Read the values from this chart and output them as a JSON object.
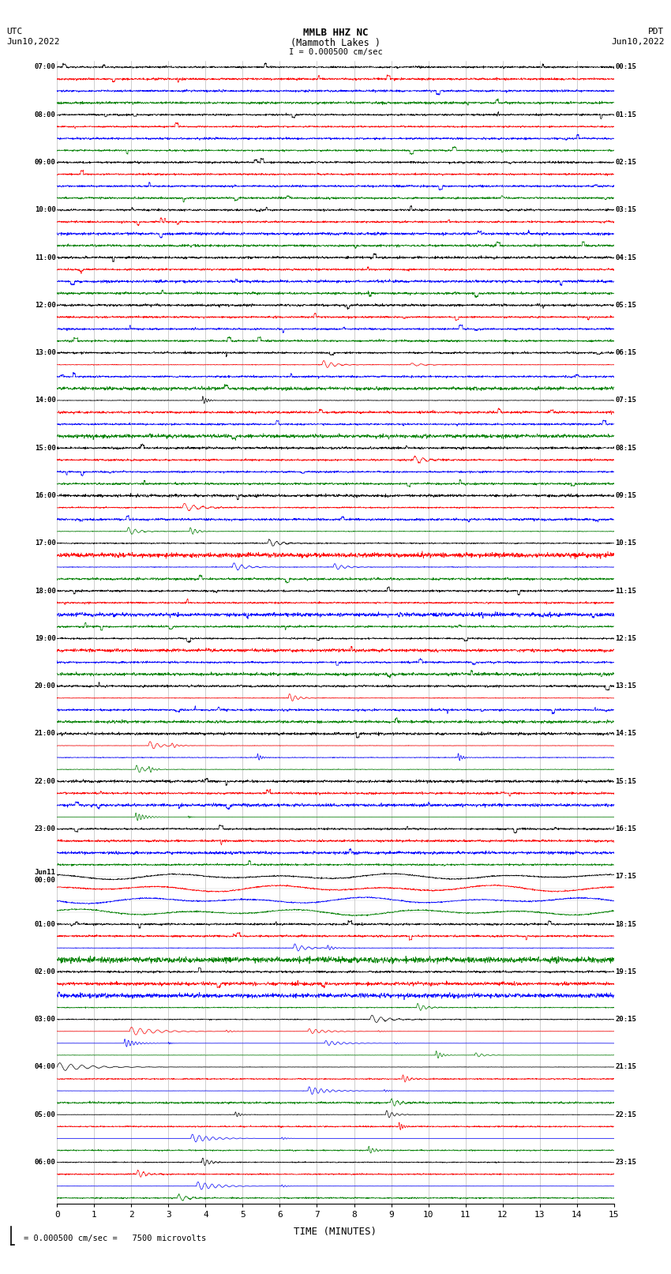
{
  "title_line1": "MMLB HHZ NC",
  "title_line2": "(Mammoth Lakes )",
  "title_line3": "I = 0.000500 cm/sec",
  "left_header_line1": "UTC",
  "left_header_line2": "Jun10,2022",
  "right_header_line1": "PDT",
  "right_header_line2": "Jun10,2022",
  "xlabel": "TIME (MINUTES)",
  "bottom_note": "= 0.000500 cm/sec =   7500 microvolts",
  "x_min": 0,
  "x_max": 15,
  "x_ticks": [
    0,
    1,
    2,
    3,
    4,
    5,
    6,
    7,
    8,
    9,
    10,
    11,
    12,
    13,
    14,
    15
  ],
  "background_color": "#ffffff",
  "trace_colors": [
    "black",
    "red",
    "blue",
    "green"
  ],
  "utc_labels": [
    "07:00",
    "",
    "",
    "",
    "08:00",
    "",
    "",
    "",
    "09:00",
    "",
    "",
    "",
    "10:00",
    "",
    "",
    "",
    "11:00",
    "",
    "",
    "",
    "12:00",
    "",
    "",
    "",
    "13:00",
    "",
    "",
    "",
    "14:00",
    "",
    "",
    "",
    "15:00",
    "",
    "",
    "",
    "16:00",
    "",
    "",
    "",
    "17:00",
    "",
    "",
    "",
    "18:00",
    "",
    "",
    "",
    "19:00",
    "",
    "",
    "",
    "20:00",
    "",
    "",
    "",
    "21:00",
    "",
    "",
    "",
    "22:00",
    "",
    "",
    "",
    "23:00",
    "",
    "",
    "",
    "Jun11\n00:00",
    "",
    "",
    "",
    "01:00",
    "",
    "",
    "",
    "02:00",
    "",
    "",
    "",
    "03:00",
    "",
    "",
    "",
    "04:00",
    "",
    "",
    "",
    "05:00",
    "",
    "",
    "",
    "06:00",
    "",
    "",
    ""
  ],
  "pdt_labels": [
    "00:15",
    "",
    "",
    "",
    "01:15",
    "",
    "",
    "",
    "02:15",
    "",
    "",
    "",
    "03:15",
    "",
    "",
    "",
    "04:15",
    "",
    "",
    "",
    "05:15",
    "",
    "",
    "",
    "06:15",
    "",
    "",
    "",
    "07:15",
    "",
    "",
    "",
    "08:15",
    "",
    "",
    "",
    "09:15",
    "",
    "",
    "",
    "10:15",
    "",
    "",
    "",
    "11:15",
    "",
    "",
    "",
    "12:15",
    "",
    "",
    "",
    "13:15",
    "",
    "",
    "",
    "14:15",
    "",
    "",
    "",
    "15:15",
    "",
    "",
    "",
    "16:15",
    "",
    "",
    "",
    "17:15",
    "",
    "",
    "",
    "18:15",
    "",
    "",
    "",
    "19:15",
    "",
    "",
    "",
    "20:15",
    "",
    "",
    "",
    "21:15",
    "",
    "",
    "",
    "22:15",
    "",
    "",
    "",
    "23:15",
    "",
    "",
    ""
  ],
  "fig_width": 8.5,
  "fig_height": 16.13,
  "dpi": 100
}
